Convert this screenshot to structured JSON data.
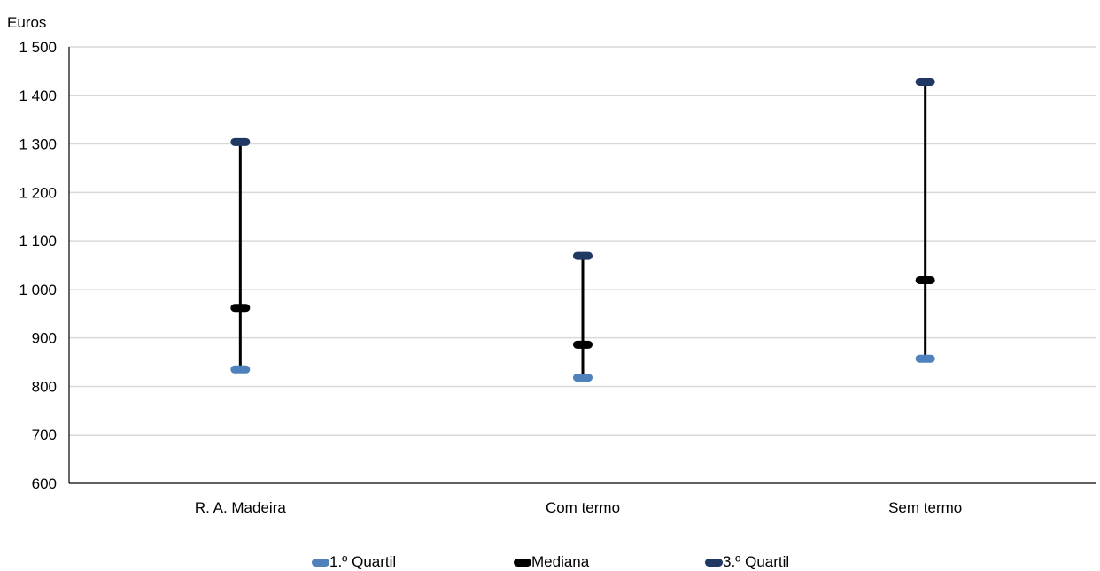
{
  "chart_data": {
    "type": "line",
    "unit_label": "Euros",
    "categories": [
      "R. A. Madeira",
      "Com termo",
      "Sem termo"
    ],
    "series": [
      {
        "name": "1.º Quartil",
        "values": [
          835,
          818,
          857
        ],
        "color": "#4f81bd"
      },
      {
        "name": "Mediana",
        "values": [
          962,
          886,
          1019
        ],
        "color": "#000000"
      },
      {
        "name": "3.º Quartil",
        "values": [
          1304,
          1069,
          1428
        ],
        "color": "#1f3864"
      }
    ],
    "ylim": [
      600,
      1500
    ],
    "y_ticks": [
      600,
      700,
      800,
      900,
      1000,
      1100,
      1200,
      1300,
      1400,
      1500
    ],
    "y_tick_labels": [
      "600",
      "700",
      "800",
      "900",
      "1 000",
      "1 100",
      "1 200",
      "1 300",
      "1 400",
      "1 500"
    ],
    "grid": true,
    "legend_position": "bottom"
  }
}
